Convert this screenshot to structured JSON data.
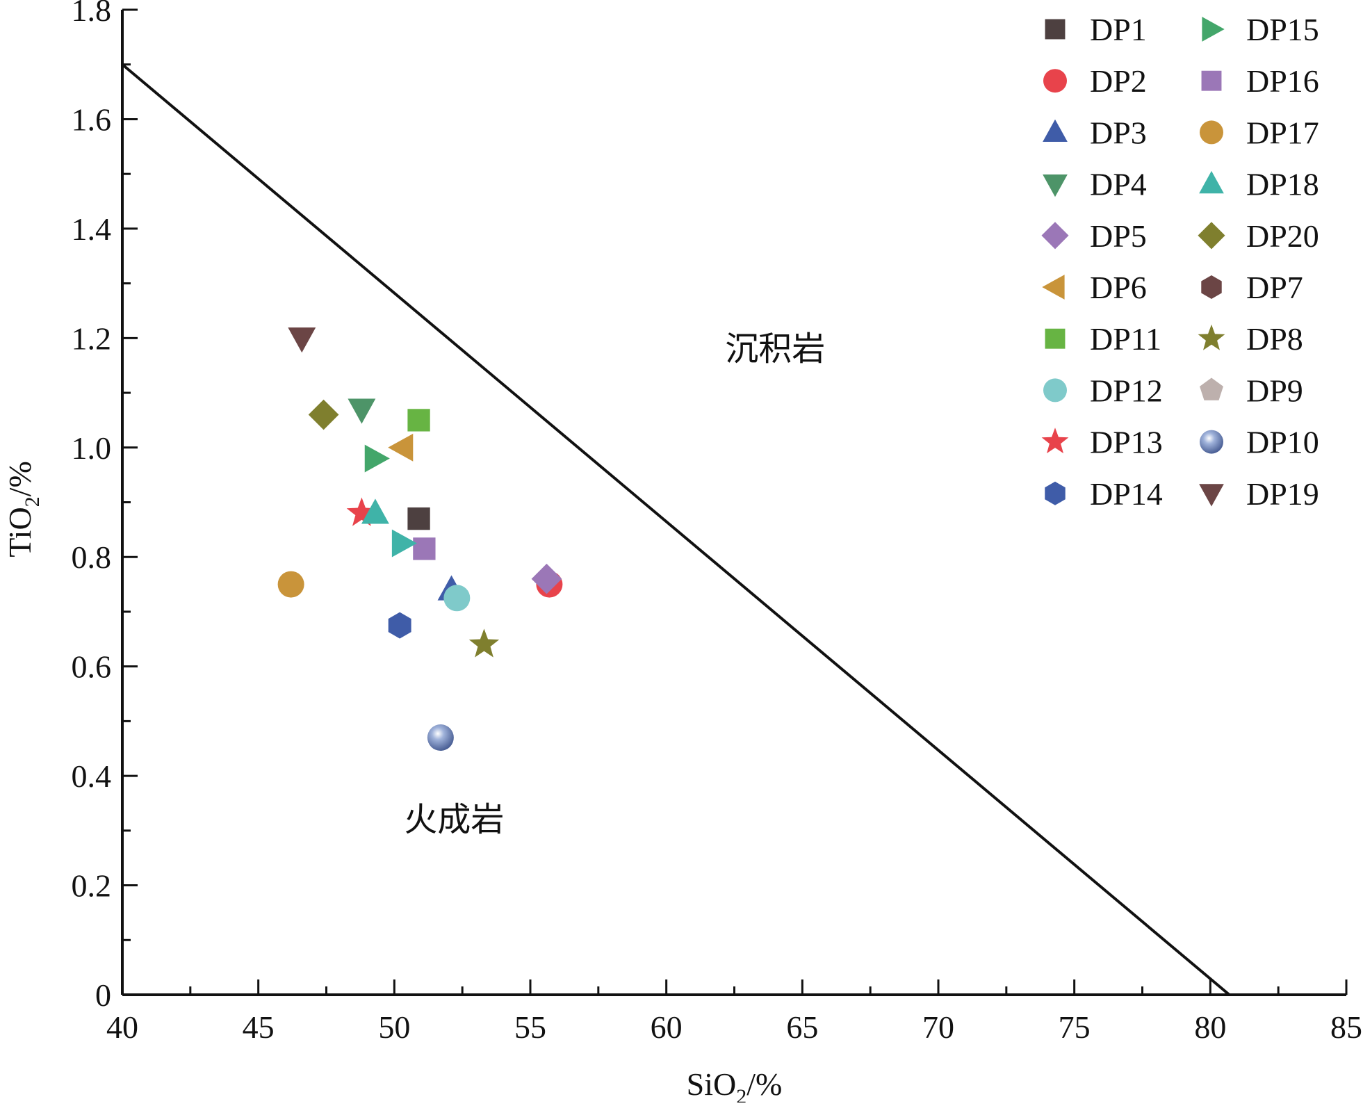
{
  "chart_data": {
    "type": "scatter",
    "title": "",
    "xlabel": {
      "base": "SiO",
      "sub": "2",
      "unit": "/%"
    },
    "ylabel": {
      "base": "TiO",
      "sub": "2",
      "unit": "/%"
    },
    "xlim": [
      40,
      85
    ],
    "ylim": [
      0,
      1.8
    ],
    "x_ticks": [
      {
        "v": 40,
        "label": "40"
      },
      {
        "v": 45,
        "label": "45"
      },
      {
        "v": 50,
        "label": "50"
      },
      {
        "v": 55,
        "label": "55"
      },
      {
        "v": 60,
        "label": "60"
      },
      {
        "v": 65,
        "label": "65"
      },
      {
        "v": 70,
        "label": "70"
      },
      {
        "v": 75,
        "label": "75"
      },
      {
        "v": 80,
        "label": "80"
      },
      {
        "v": 85,
        "label": "85"
      }
    ],
    "y_ticks": [
      {
        "v": 0,
        "label": "0"
      },
      {
        "v": 0.2,
        "label": "0.2"
      },
      {
        "v": 0.4,
        "label": "0.4"
      },
      {
        "v": 0.6,
        "label": "0.6"
      },
      {
        "v": 0.8,
        "label": "0.8"
      },
      {
        "v": 1.0,
        "label": "1.0"
      },
      {
        "v": 1.2,
        "label": "1.2"
      },
      {
        "v": 1.4,
        "label": "1.4"
      },
      {
        "v": 1.6,
        "label": "1.6"
      },
      {
        "v": 1.8,
        "label": "1.8"
      }
    ],
    "grid": false,
    "legend_position": "top-right",
    "boundary_line": {
      "x": [
        40,
        80.7
      ],
      "y": [
        1.7,
        0
      ]
    },
    "region_labels": [
      {
        "text": "沉积岩",
        "x": 64,
        "y": 1.16
      },
      {
        "text": "火成岩",
        "x": 52.2,
        "y": 0.3
      }
    ],
    "series": [
      {
        "name": "DP1",
        "marker": "square",
        "color": "#4d4040",
        "x": 50.9,
        "y": 0.87
      },
      {
        "name": "DP2",
        "marker": "circle",
        "color": "#e8434b",
        "x": 55.7,
        "y": 0.75
      },
      {
        "name": "DP3",
        "marker": "triangle-up",
        "color": "#3f5ca8",
        "x": 52.1,
        "y": 0.74
      },
      {
        "name": "DP4",
        "marker": "triangle-down",
        "color": "#4d9468",
        "x": 48.8,
        "y": 1.07
      },
      {
        "name": "DP5",
        "marker": "diamond",
        "color": "#9b77b7",
        "x": 55.6,
        "y": 0.76
      },
      {
        "name": "DP6",
        "marker": "triangle-left",
        "color": "#c9943a",
        "x": 50.3,
        "y": 1.0
      },
      {
        "name": "DP11",
        "marker": "square",
        "color": "#67b443",
        "x": 50.9,
        "y": 1.05
      },
      {
        "name": "DP12",
        "marker": "circle",
        "color": "#7fcaca",
        "x": 52.3,
        "y": 0.725
      },
      {
        "name": "DP13",
        "marker": "star",
        "color": "#e8434b",
        "x": 48.8,
        "y": 0.88
      },
      {
        "name": "DP14",
        "marker": "hexagon",
        "color": "#3f5ca8",
        "x": 50.2,
        "y": 0.675
      },
      {
        "name": "DP15",
        "marker": "triangle-right",
        "color": "#43a66a",
        "x": 49.3,
        "y": 0.98
      },
      {
        "name": "DP16",
        "marker": "square",
        "color": "#9b77b7",
        "x": 51.1,
        "y": 0.815
      },
      {
        "name": "DP17",
        "marker": "circle",
        "color": "#c9943a",
        "x": 46.2,
        "y": 0.75
      },
      {
        "name": "DP18",
        "marker": "triangle-up",
        "color": "#3fb3a8",
        "x": 49.3,
        "y": 0.88
      },
      {
        "name": "DP20",
        "marker": "diamond",
        "color": "#7f7f2e",
        "x": 47.4,
        "y": 1.06
      },
      {
        "name": "DP7",
        "marker": "hexagon",
        "color": "#6b4545",
        "x": null,
        "y": null
      },
      {
        "name": "DP8",
        "marker": "star",
        "color": "#7f7f2e",
        "x": 53.3,
        "y": 0.64
      },
      {
        "name": "DP9",
        "marker": "pentagon",
        "color": "#bdb0ad",
        "x": null,
        "y": null
      },
      {
        "name": "DP10",
        "marker": "sphere",
        "color": "#6f86b8",
        "x": 51.7,
        "y": 0.47
      },
      {
        "name": "DP19",
        "marker": "triangle-down",
        "color": "#6b4545",
        "x": 46.6,
        "y": 1.2
      }
    ],
    "extra_points": [
      {
        "marker": "triangle-right",
        "color": "#3fb3a8",
        "x": 50.3,
        "y": 0.825
      }
    ],
    "legend_columns": [
      [
        "DP1",
        "DP2",
        "DP3",
        "DP4",
        "DP5",
        "DP6",
        "DP11",
        "DP12",
        "DP13",
        "DP14"
      ],
      [
        "DP15",
        "DP16",
        "DP17",
        "DP18",
        "DP20",
        "DP7",
        "DP8",
        "DP9",
        "DP10",
        "DP19"
      ]
    ]
  }
}
